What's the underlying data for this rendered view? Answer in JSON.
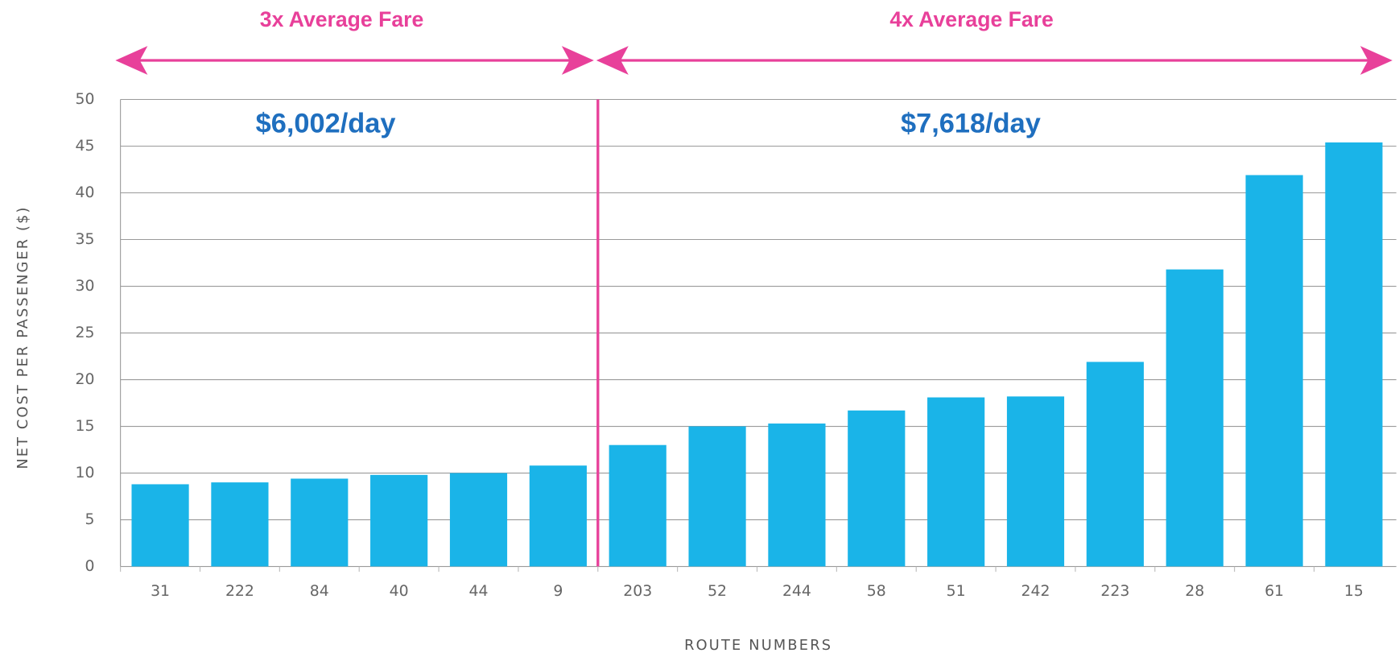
{
  "chart_data": {
    "type": "bar",
    "y_label": "NET COST PER PASSENGER ($)",
    "x_label": "ROUTE NUMBERS",
    "annotations": [
      "3x Average Fare",
      "4x Average Fare",
      "$6,002/day",
      "$7,618/day"
    ],
    "categories": [
      "31",
      "222",
      "84",
      "40",
      "44",
      "9",
      "203",
      "52",
      "244",
      "58",
      "51",
      "242",
      "223",
      "28",
      "61",
      "15"
    ],
    "values": [
      8.8,
      9.0,
      9.4,
      9.8,
      10.0,
      10.8,
      13.0,
      15.0,
      15.3,
      16.7,
      18.1,
      18.2,
      21.9,
      31.8,
      41.9,
      45.4
    ],
    "color": "#1ab4e8",
    "ylim": [
      0,
      50
    ],
    "yticks": [
      0,
      5,
      10,
      15,
      20,
      25,
      30,
      35,
      40,
      45,
      50
    ],
    "grid": true
  }
}
